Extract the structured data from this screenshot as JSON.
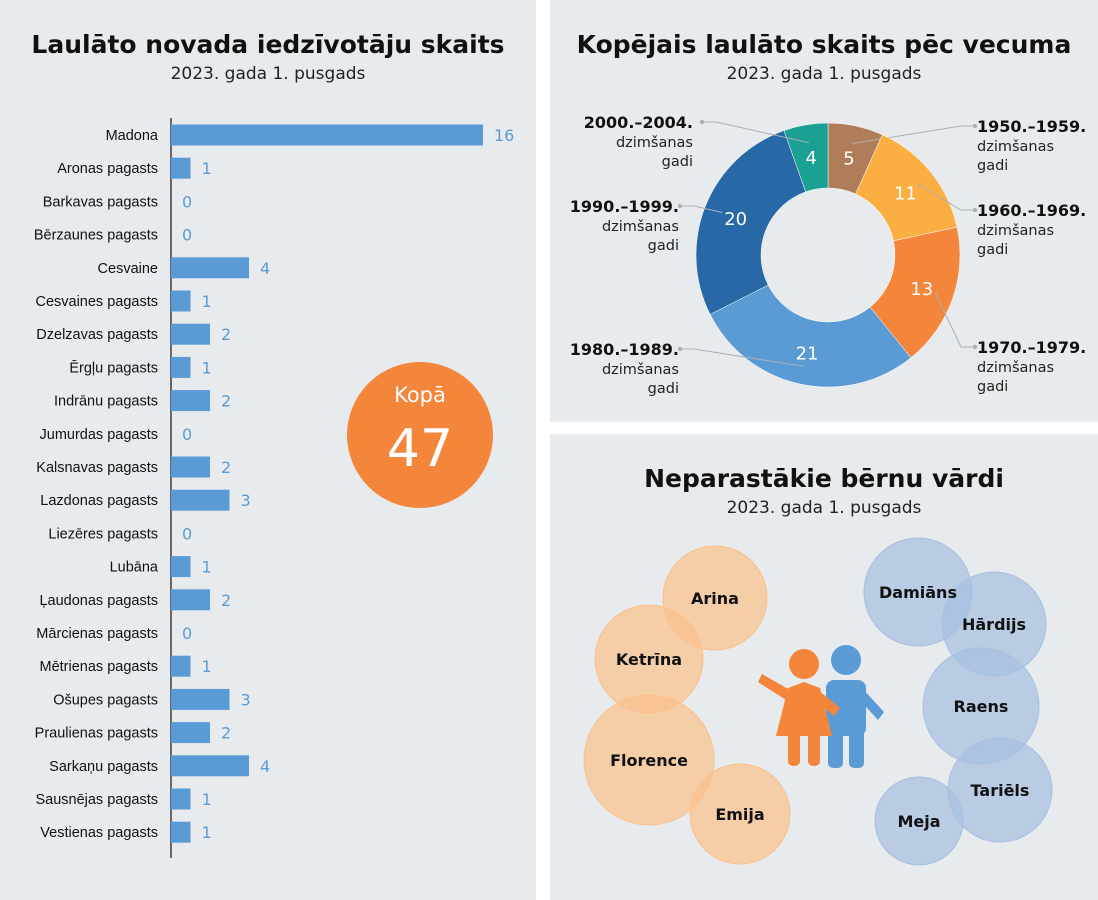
{
  "bar_panel": {
    "title": "Laulāto novada iedzīvotāju skaits",
    "subtitle": "2023. gada 1. pusgads",
    "total_label": "Kopā",
    "total_value": "47"
  },
  "donut_panel": {
    "title": "Kopējais laulāto skaits pēc vecuma",
    "subtitle": "2023. gada 1. pusgads"
  },
  "names_panel": {
    "title": "Neparastākie bērnu vārdi",
    "subtitle": "2023. gada 1. pusgads",
    "girl_names": [
      "Arina",
      "Ketrīna",
      "Florence",
      "Emija"
    ],
    "boy_names": [
      "Damiāns",
      "Hārdijs",
      "Raens",
      "Tariēls",
      "Meja"
    ]
  },
  "colors": {
    "panel_bg": "#e7ebee",
    "bar": "#5b9bd5",
    "total_circle": "#f4863b",
    "girl_bubble": "#fbc08c",
    "boy_bubble": "#a8bfe0",
    "girl_figure": "#f4863b",
    "boy_figure": "#5b9bd5"
  },
  "chart_data": [
    {
      "type": "bar",
      "orientation": "horizontal",
      "title": "Laulāto novada iedzīvotāju skaits",
      "subtitle": "2023. gada 1. pusgads",
      "categories": [
        "Madona",
        "Aronas pagasts",
        "Barkavas pagasts",
        "Bērzaunes pagasts",
        "Cesvaine",
        "Cesvaines pagasts",
        "Dzelzavas pagasts",
        "Ērgļu pagasts",
        "Indrānu pagasts",
        "Jumurdas pagasts",
        "Kalsnavas pagasts",
        "Lazdonas pagasts",
        "Liezēres pagasts",
        "Lubāna",
        "Ļaudonas pagasts",
        "Mārcienas pagasts",
        "Mētrienas pagasts",
        "Ošupes pagasts",
        "Praulienas pagasts",
        "Sarkaņu pagasts",
        "Sausnējas pagasts",
        "Vestienas pagasts"
      ],
      "values": [
        16,
        1,
        0,
        0,
        4,
        1,
        2,
        1,
        2,
        0,
        2,
        3,
        0,
        1,
        2,
        0,
        1,
        3,
        2,
        4,
        1,
        1
      ],
      "xlim": [
        0,
        16
      ],
      "grid": false,
      "data_labels": true
    },
    {
      "type": "pie",
      "variant": "donut",
      "title": "Kopējais laulāto skaits pēc vecuma",
      "subtitle": "2023. gada 1. pusgads",
      "slices": [
        {
          "label": "1950.–1959.",
          "sublabel": "dzimšanas gadi",
          "value": 5,
          "color": "#b07d5a"
        },
        {
          "label": "1960.–1969.",
          "sublabel": "dzimšanas gadi",
          "value": 11,
          "color": "#fbae42"
        },
        {
          "label": "1970.–1979.",
          "sublabel": "dzimšanas gadi",
          "value": 13,
          "color": "#f4863b"
        },
        {
          "label": "1980.–1989.",
          "sublabel": "dzimšanas gadi",
          "value": 21,
          "color": "#5b9bd5"
        },
        {
          "label": "1990.–1999.",
          "sublabel": "dzimšanas gadi",
          "value": 20,
          "color": "#2868a6"
        },
        {
          "label": "2000.–2004.",
          "sublabel": "dzimšanas gadi",
          "value": 4,
          "color": "#1aa193"
        }
      ]
    }
  ]
}
